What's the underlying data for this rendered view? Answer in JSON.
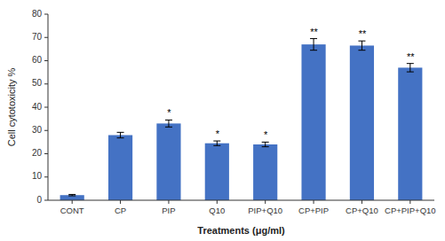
{
  "chart_data": {
    "type": "bar",
    "categories": [
      "CONT",
      "CP",
      "PIP",
      "Q10",
      "PIP+Q10",
      "CP+PIP",
      "CP+Q10",
      "CP+PIP+Q10"
    ],
    "values": [
      2.2,
      28.0,
      33.0,
      24.5,
      24.0,
      67.0,
      66.5,
      57.0
    ],
    "errors": [
      0.3,
      1.2,
      1.5,
      1.0,
      1.0,
      2.5,
      2.0,
      1.8
    ],
    "significance": [
      null,
      null,
      "*",
      "*",
      "*",
      "**",
      "**",
      "**"
    ],
    "color": "#4472C4",
    "ylabel": "Cell cytotoxicity %",
    "xlabel": "Treatments (μg/ml)",
    "ylim": [
      0,
      80
    ],
    "yticks": [
      0,
      10,
      20,
      30,
      40,
      50,
      60,
      70,
      80
    ],
    "grid": false
  }
}
